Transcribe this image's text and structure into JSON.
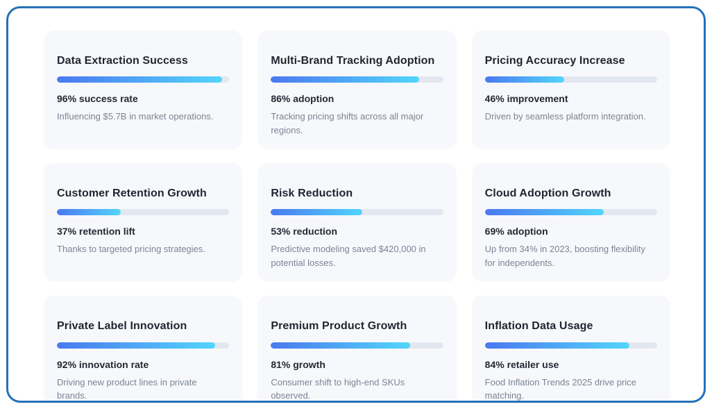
{
  "page": {
    "frame_border_color": "#2471b8",
    "card_background": "#f7f8fb",
    "bar_track_color": "#e3e7ef",
    "bar_gradient_start": "#4a79ef",
    "bar_gradient_end": "#53d5fb"
  },
  "cards": [
    {
      "title": "Data Extraction Success",
      "percent": 96,
      "stat": "96% success rate",
      "description": "Influencing $5.7B in market operations."
    },
    {
      "title": "Multi-Brand Tracking Adoption",
      "percent": 86,
      "stat": "86% adoption",
      "description": "Tracking pricing shifts across all major regions."
    },
    {
      "title": "Pricing Accuracy Increase",
      "percent": 46,
      "stat": "46% improvement",
      "description": "Driven by seamless platform integration."
    },
    {
      "title": "Customer Retention Growth",
      "percent": 37,
      "stat": "37% retention lift",
      "description": "Thanks to targeted pricing strategies."
    },
    {
      "title": "Risk Reduction",
      "percent": 53,
      "stat": "53% reduction",
      "description": "Predictive modeling saved $420,000 in potential losses."
    },
    {
      "title": "Cloud Adoption Growth",
      "percent": 69,
      "stat": "69% adoption",
      "description": "Up from 34% in 2023, boosting flexibility for independents."
    },
    {
      "title": "Private Label Innovation",
      "percent": 92,
      "stat": "92% innovation rate",
      "description": "Driving new product lines in private brands."
    },
    {
      "title": "Premium Product Growth",
      "percent": 81,
      "stat": "81% growth",
      "description": "Consumer shift to high-end SKUs observed."
    },
    {
      "title": "Inflation Data Usage",
      "percent": 84,
      "stat": "84% retailer use",
      "description": "Food Inflation Trends 2025 drive price matching."
    }
  ]
}
